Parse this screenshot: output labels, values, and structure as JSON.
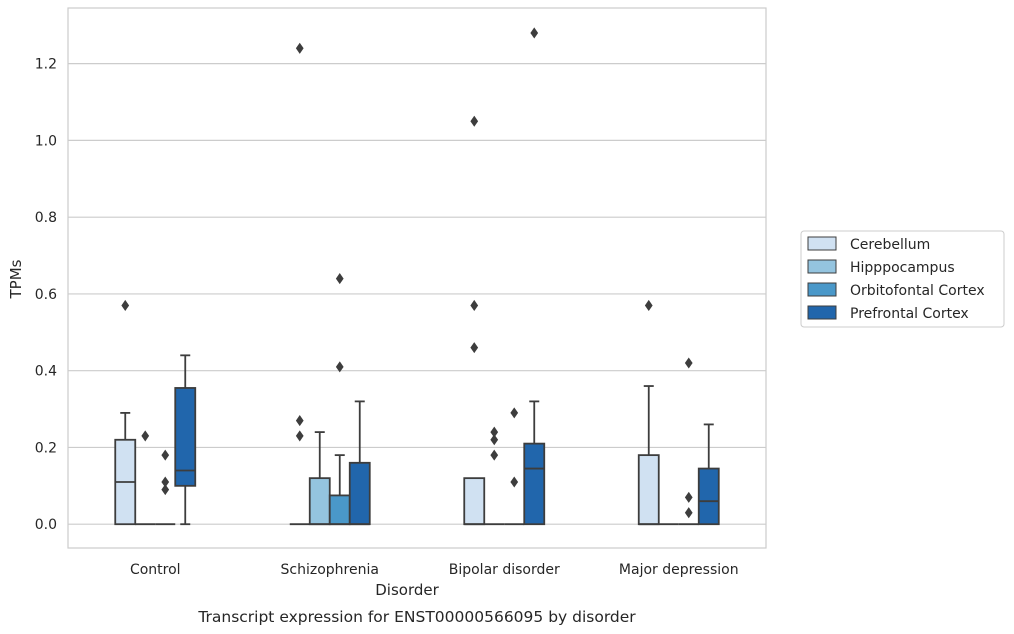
{
  "chart_data": {
    "type": "box",
    "xlabel": "Disorder",
    "ylabel": "TPMs",
    "caption": "Transcript expression for ENST00000566095 by disorder",
    "ylim": [
      -0.062,
      1.345
    ],
    "yticks": [
      "0.0",
      "0.2",
      "0.4",
      "0.6",
      "0.8",
      "1.0",
      "1.2"
    ],
    "grid": "horizontal",
    "legend_position": "right",
    "categories": [
      "Control",
      "Schizophrenia",
      "Bipolar disorder",
      "Major depression"
    ],
    "series": [
      {
        "name": "Cerebellum",
        "color": "#d0e1f2",
        "boxes": [
          {
            "q1": 0,
            "median": 0.11,
            "q3": 0.22,
            "whisker_low": 0,
            "whisker_high": 0.29,
            "outliers": [
              0.57
            ]
          },
          {
            "q1": 0,
            "median": 0,
            "q3": 0,
            "whisker_low": 0,
            "whisker_high": 0,
            "outliers": [
              0.23,
              0.27,
              1.24
            ]
          },
          {
            "q1": 0,
            "median": 0,
            "q3": 0.12,
            "whisker_low": 0,
            "whisker_high": 0.12,
            "outliers": [
              0.46,
              0.57,
              1.05
            ]
          },
          {
            "q1": 0,
            "median": 0,
            "q3": 0.18,
            "whisker_low": 0,
            "whisker_high": 0.36,
            "outliers": [
              0.57
            ]
          }
        ]
      },
      {
        "name": "Hipppocampus",
        "color": "#94c4df",
        "boxes": [
          {
            "q1": 0,
            "median": 0,
            "q3": 0,
            "whisker_low": 0,
            "whisker_high": 0,
            "outliers": [
              0.23
            ]
          },
          {
            "q1": 0,
            "median": 0,
            "q3": 0.12,
            "whisker_low": 0,
            "whisker_high": 0.24,
            "outliers": []
          },
          {
            "q1": 0,
            "median": 0,
            "q3": 0,
            "whisker_low": 0,
            "whisker_high": 0,
            "outliers": [
              0.18,
              0.22,
              0.24
            ]
          },
          {
            "q1": 0,
            "median": 0,
            "q3": 0,
            "whisker_low": 0,
            "whisker_high": 0,
            "outliers": []
          }
        ]
      },
      {
        "name": "Orbitofontal Cortex",
        "color": "#4a98c9",
        "boxes": [
          {
            "q1": 0,
            "median": 0,
            "q3": 0,
            "whisker_low": 0,
            "whisker_high": 0,
            "outliers": [
              0.09,
              0.11,
              0.18
            ]
          },
          {
            "q1": 0,
            "median": 0,
            "q3": 0.075,
            "whisker_low": 0,
            "whisker_high": 0.18,
            "outliers": [
              0.41,
              0.64
            ]
          },
          {
            "q1": 0,
            "median": 0,
            "q3": 0,
            "whisker_low": 0,
            "whisker_high": 0,
            "outliers": [
              0.11,
              0.29
            ]
          },
          {
            "q1": 0,
            "median": 0,
            "q3": 0,
            "whisker_low": 0,
            "whisker_high": 0,
            "outliers": [
              0.03,
              0.07,
              0.42
            ]
          }
        ]
      },
      {
        "name": "Prefrontal Cortex",
        "color": "#2166ac",
        "boxes": [
          {
            "q1": 0.1,
            "median": 0.14,
            "q3": 0.355,
            "whisker_low": 0,
            "whisker_high": 0.44,
            "outliers": []
          },
          {
            "q1": 0,
            "median": 0,
            "q3": 0.16,
            "whisker_low": 0,
            "whisker_high": 0.32,
            "outliers": []
          },
          {
            "q1": 0,
            "median": 0.145,
            "q3": 0.21,
            "whisker_low": 0,
            "whisker_high": 0.32,
            "outliers": [
              1.28
            ]
          },
          {
            "q1": 0,
            "median": 0.06,
            "q3": 0.145,
            "whisker_low": 0,
            "whisker_high": 0.26,
            "outliers": []
          }
        ]
      }
    ]
  }
}
